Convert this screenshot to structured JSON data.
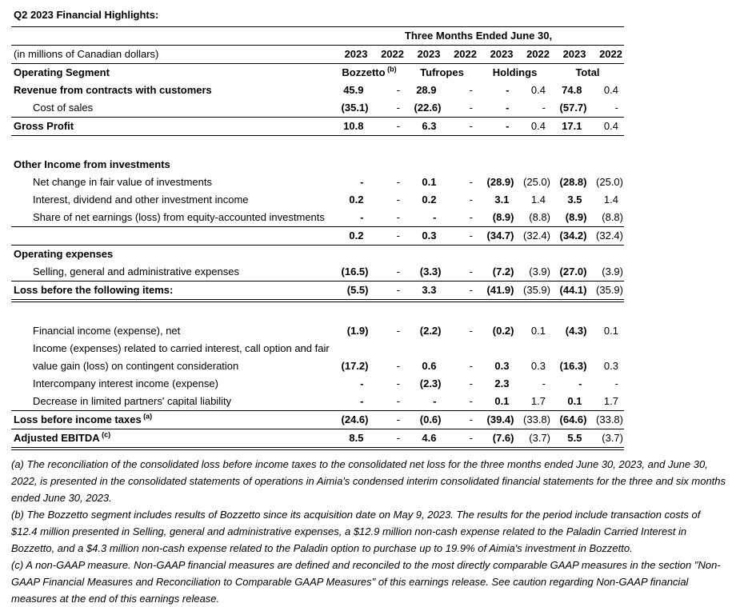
{
  "title": "Q2 2023 Financial Highlights:",
  "colors": {
    "text": "#000000",
    "background": "#ffffff",
    "rule": "#000000"
  },
  "table": {
    "period_header": "Three Months Ended June 30,",
    "units_label": "(in millions of Canadian dollars)",
    "year_headers": [
      "2023",
      "2022",
      "2023",
      "2022",
      "2023",
      "2022",
      "2023",
      "2022"
    ],
    "segment_row_label": "Operating Segment",
    "segments": [
      {
        "name": "Bozzetto",
        "sup": "(b)"
      },
      {
        "name": "Tufropes",
        "sup": ""
      },
      {
        "name": "Holdings",
        "sup": ""
      },
      {
        "name": "Total",
        "sup": ""
      }
    ],
    "rows": [
      {
        "label": "Revenue from contracts with customers",
        "bold": true,
        "indent": 0,
        "values": [
          "45.9",
          "-",
          "28.9",
          "-",
          "-",
          "0.4",
          "74.8",
          "0.4"
        ]
      },
      {
        "label": "Cost of sales",
        "bold": false,
        "indent": 1,
        "rule": "single",
        "values": [
          "(35.1)",
          "-",
          "(22.6)",
          "-",
          "-",
          "-",
          "(57.7)",
          "-"
        ]
      },
      {
        "label": "Gross Profit",
        "bold": true,
        "indent": 0,
        "rule": "single",
        "values": [
          "10.8",
          "-",
          "6.3",
          "-",
          "-",
          "0.4",
          "17.1",
          "0.4"
        ]
      },
      {
        "spacer": true
      },
      {
        "label": "Other Income from investments",
        "bold": true,
        "indent": 0,
        "values": null
      },
      {
        "label": "Net change in fair value of investments",
        "bold": false,
        "indent": 1,
        "values": [
          "-",
          "-",
          "0.1",
          "-",
          "(28.9)",
          "(25.0)",
          "(28.8)",
          "(25.0)"
        ]
      },
      {
        "label": "Interest, dividend and other investment income",
        "bold": false,
        "indent": 1,
        "values": [
          "0.2",
          "-",
          "0.2",
          "-",
          "3.1",
          "1.4",
          "3.5",
          "1.4"
        ]
      },
      {
        "label": "Share of net earnings (loss) from equity-accounted investments",
        "bold": false,
        "indent": 1,
        "rule": "single",
        "values": [
          "-",
          "-",
          "-",
          "-",
          "(8.9)",
          "(8.8)",
          "(8.9)",
          "(8.8)"
        ]
      },
      {
        "label": "",
        "bold": false,
        "indent": 0,
        "rule": "single",
        "values": [
          "0.2",
          "-",
          "0.3",
          "-",
          "(34.7)",
          "(32.4)",
          "(34.2)",
          "(32.4)"
        ]
      },
      {
        "label": "Operating expenses",
        "bold": true,
        "indent": 0,
        "values": null
      },
      {
        "label": "Selling, general and administrative expenses",
        "bold": false,
        "indent": 1,
        "rule": "single",
        "values": [
          "(16.5)",
          "-",
          "(3.3)",
          "-",
          "(7.2)",
          "(3.9)",
          "(27.0)",
          "(3.9)"
        ]
      },
      {
        "label": "Loss before the following items:",
        "bold": true,
        "indent": 0,
        "rule": "double",
        "values": [
          "(5.5)",
          "-",
          "3.3",
          "-",
          "(41.9)",
          "(35.9)",
          "(44.1)",
          "(35.9)"
        ]
      },
      {
        "spacer": true
      },
      {
        "label": "Financial income (expense), net",
        "bold": false,
        "indent": 1,
        "values": [
          "(1.9)",
          "-",
          "(2.2)",
          "-",
          "(0.2)",
          "0.1",
          "(4.3)",
          "0.1"
        ]
      },
      {
        "label": "Income (expenses) related to carried interest, call option and fair",
        "label2": "value gain (loss) on contingent consideration",
        "bold": false,
        "indent": 1,
        "values": [
          "(17.2)",
          "-",
          "0.6",
          "-",
          "0.3",
          "0.3",
          "(16.3)",
          "0.3"
        ]
      },
      {
        "label": "Intercompany interest income (expense)",
        "bold": false,
        "indent": 1,
        "values": [
          "-",
          "-",
          "(2.3)",
          "-",
          "2.3",
          "-",
          "-",
          "-"
        ]
      },
      {
        "label": "Decrease in limited partners' capital liability",
        "bold": false,
        "indent": 1,
        "rule": "single",
        "values": [
          "-",
          "-",
          "-",
          "-",
          "0.1",
          "1.7",
          "0.1",
          "1.7"
        ]
      },
      {
        "label": "Loss before income taxes",
        "sup": "(a)",
        "bold": true,
        "indent": 0,
        "rule": "single",
        "values": [
          "(24.6)",
          "-",
          "(0.6)",
          "-",
          "(39.4)",
          "(33.8)",
          "(64.6)",
          "(33.8)"
        ]
      },
      {
        "label": "Adjusted EBITDA",
        "sup": "(c)",
        "bold": true,
        "indent": 0,
        "rule": "double",
        "values": [
          "8.5",
          "-",
          "4.6",
          "-",
          "(7.6)",
          "(3.7)",
          "5.5",
          "(3.7)"
        ]
      }
    ]
  },
  "footnotes": [
    {
      "marker": "(a)",
      "text": "The reconciliation of the consolidated loss before income taxes to the consolidated net loss for the three months ended June 30, 2023, and June 30, 2022, is presented in the consolidated statements of operations in Aimia's condensed interim consolidated financial statements for the three and six months ended June 30, 2023."
    },
    {
      "marker": "(b)",
      "text": "The Bozzetto segment includes results of Bozzetto since its acquisition date on May 9, 2023. The results for the period include transaction costs of $12.4 million presented in Selling, general and administrative expenses, a $12.9 million non-cash expense related to the Paladin Carried Interest in Bozzetto, and a $4.3 million non-cash expense related to the Paladin option to purchase up to 19.9% of Aimia's investment in Bozzetto."
    },
    {
      "marker": "(c)",
      "text": "A non-GAAP measure. Non-GAAP financial measures are defined and reconciled to the most directly comparable GAAP measures in the section \"Non-GAAP Financial Measures and Reconciliation to Comparable GAAP Measures\" of this earnings release. See caution regarding Non-GAAP financial measures at the end of this earnings release."
    }
  ]
}
